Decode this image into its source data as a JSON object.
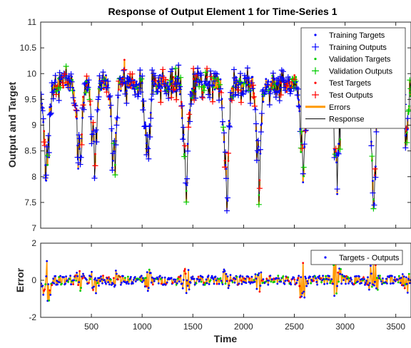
{
  "chart_data": [
    {
      "type": "line",
      "title": "Response of Output Element 1 for Time-Series 1",
      "xlabel": "",
      "ylabel": "Output and Target",
      "xlim": [
        0,
        3650
      ],
      "ylim": [
        7,
        11
      ],
      "yticks": [
        7,
        7.5,
        8,
        8.5,
        9,
        9.5,
        10,
        10.5,
        11
      ],
      "ytick_labels": [
        "7",
        "7.5",
        "8",
        "8.5",
        "9",
        "9.5",
        "10",
        "10.5",
        "11"
      ],
      "grid": false,
      "legend_position": "top-right",
      "legend": [
        "Training Targets",
        "Training Outputs",
        "Validation Targets",
        "Validation Outputs",
        "Test Targets",
        "Test Outputs",
        "Errors",
        "Response"
      ],
      "baseline": 9.8,
      "dips": [
        {
          "x": 60,
          "min": 7.3
        },
        {
          "x": 380,
          "min": 7.8
        },
        {
          "x": 530,
          "min": 7.8
        },
        {
          "x": 720,
          "min": 7.7
        },
        {
          "x": 1050,
          "min": 7.9
        },
        {
          "x": 1430,
          "min": 7.5
        },
        {
          "x": 1830,
          "min": 7.25
        },
        {
          "x": 2150,
          "min": 7.6
        },
        {
          "x": 2580,
          "min": 7.6
        },
        {
          "x": 2920,
          "min": 7.5
        },
        {
          "x": 3280,
          "min": 7.15
        },
        {
          "x": 3600,
          "min": 8.5
        }
      ],
      "peaks": [
        {
          "x": 820,
          "max": 10.5
        },
        {
          "x": 1560,
          "max": 10.3
        },
        {
          "x": 2960,
          "max": 10.8
        }
      ]
    },
    {
      "type": "line",
      "title": "",
      "xlabel": "Time",
      "ylabel": "Error",
      "xlim": [
        0,
        3650
      ],
      "ylim": [
        -2,
        2
      ],
      "xticks": [
        500,
        1000,
        1500,
        2000,
        2500,
        3000,
        3500
      ],
      "xtick_labels": [
        "500",
        "1000",
        "1500",
        "2000",
        "2500",
        "3000",
        "3500"
      ],
      "yticks": [
        -2,
        0,
        2
      ],
      "ytick_labels": [
        "-2",
        "0",
        "2"
      ],
      "grid": false,
      "legend_position": "top-right",
      "legend": [
        "Targets - Outputs"
      ],
      "error_bursts": [
        {
          "x": 60,
          "amp": 1.6
        },
        {
          "x": 380,
          "amp": 0.8
        },
        {
          "x": 530,
          "amp": 0.9
        },
        {
          "x": 750,
          "amp": 0.9
        },
        {
          "x": 1050,
          "amp": 0.8
        },
        {
          "x": 1430,
          "amp": 0.9
        },
        {
          "x": 1830,
          "amp": 0.9
        },
        {
          "x": 2150,
          "amp": 0.7
        },
        {
          "x": 2580,
          "amp": 1.2
        },
        {
          "x": 2920,
          "amp": 1.4
        },
        {
          "x": 3280,
          "amp": 1.3
        },
        {
          "x": 3600,
          "amp": 0.8
        }
      ]
    }
  ],
  "colors": {
    "training": "#0000ff",
    "validation": "#00cc00",
    "test": "#ff0000",
    "errors": "#ff9900",
    "response": "#000000",
    "axes": "#262626"
  }
}
